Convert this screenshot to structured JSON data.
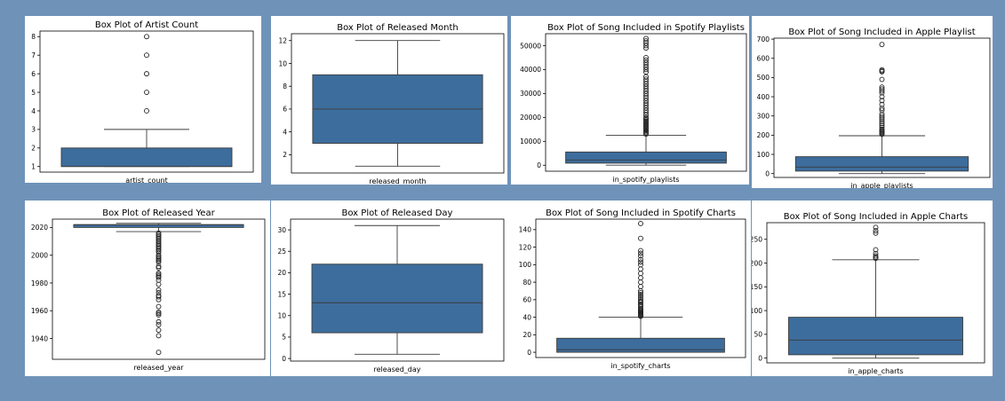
{
  "colors": {
    "box_fill": "#3d6d9c",
    "line": "#3c3c3c",
    "page_bg": "#6f93b8"
  },
  "chart_data": [
    {
      "type": "box",
      "title": "Box Plot of Artist Count",
      "xlabel": "artist_count",
      "ylim": [
        0.7,
        8.3
      ],
      "yticks": [
        1,
        2,
        3,
        4,
        5,
        6,
        7,
        8
      ],
      "stats": {
        "whisker_low": 1,
        "q1": 1,
        "median": 1,
        "q3": 2,
        "whisker_high": 3
      },
      "outliers": [
        4,
        5,
        6,
        7,
        8
      ]
    },
    {
      "type": "box",
      "title": "Box Plot of Released Month",
      "xlabel": "released_month",
      "ylim": [
        0.4,
        12.6
      ],
      "yticks": [
        2,
        4,
        6,
        8,
        10,
        12
      ],
      "stats": {
        "whisker_low": 1,
        "q1": 3,
        "median": 6,
        "q3": 9,
        "whisker_high": 12
      },
      "outliers": []
    },
    {
      "type": "box",
      "title": "Box Plot of Song Included in Spotify Playlists",
      "xlabel": "in_spotify_playlists",
      "ylim": [
        -2500,
        55000
      ],
      "yticks": [
        0,
        10000,
        20000,
        30000,
        40000,
        50000
      ],
      "stats": {
        "whisker_low": 31,
        "q1": 875,
        "median": 2224,
        "q3": 5542,
        "whisker_high": 12500
      },
      "outliers": [
        13000,
        13500,
        14000,
        14500,
        15000,
        15500,
        16000,
        16500,
        17000,
        17500,
        18000,
        18500,
        19000,
        19500,
        20000,
        21000,
        22000,
        23000,
        24000,
        25000,
        26000,
        27000,
        28000,
        29000,
        30000,
        31000,
        32000,
        33000,
        34000,
        35000,
        36000,
        37000,
        39000,
        40000,
        41000,
        42000,
        43000,
        44000,
        45000,
        49000,
        50000,
        51000,
        52000,
        53000
      ]
    },
    {
      "type": "box",
      "title": "Box Plot of Song Included in Apple Playlist",
      "xlabel": "in_apple_playlists",
      "ylim": [
        -20,
        705
      ],
      "yticks": [
        0,
        100,
        200,
        300,
        400,
        500,
        600,
        700
      ],
      "stats": {
        "whisker_low": 0,
        "q1": 13,
        "median": 34,
        "q3": 88,
        "whisker_high": 197
      },
      "outliers": [
        205,
        210,
        215,
        220,
        225,
        230,
        240,
        250,
        260,
        270,
        280,
        290,
        300,
        310,
        330,
        340,
        360,
        380,
        400,
        420,
        430,
        440,
        450,
        490,
        530,
        535,
        540,
        672
      ]
    },
    {
      "type": "box",
      "title": "Box Plot of Released Year",
      "xlabel": "released_year",
      "ylim": [
        1925,
        2026
      ],
      "yticks": [
        1940,
        1960,
        1980,
        2000,
        2020
      ],
      "stats": {
        "whisker_low": 2017,
        "q1": 2020,
        "median": 2022,
        "q3": 2022,
        "whisker_high": 2023
      },
      "outliers": [
        2016,
        2015,
        2014,
        2013,
        2012,
        2011,
        2010,
        2009,
        2008,
        2007,
        2006,
        2005,
        2004,
        2003,
        2002,
        2000,
        1999,
        1998,
        1997,
        1996,
        1995,
        1992,
        1991,
        1987,
        1986,
        1985,
        1984,
        1982,
        1979,
        1975,
        1973,
        1971,
        1970,
        1968,
        1963,
        1959,
        1958,
        1957,
        1952,
        1950,
        1946,
        1942,
        1930
      ]
    },
    {
      "type": "box",
      "title": "Box Plot of Released Day",
      "xlabel": "released_day",
      "ylim": [
        -0.6,
        32.5
      ],
      "yticks": [
        0,
        5,
        10,
        15,
        20,
        25,
        30
      ],
      "stats": {
        "whisker_low": 1,
        "q1": 6,
        "median": 13,
        "q3": 22,
        "whisker_high": 31
      },
      "outliers": []
    },
    {
      "type": "box",
      "title": "Box Plot of Song Included in Spotify Charts",
      "xlabel": "in_spotify_charts",
      "ylim": [
        -6,
        152
      ],
      "yticks": [
        0,
        20,
        40,
        60,
        80,
        100,
        120,
        140
      ],
      "stats": {
        "whisker_low": 0,
        "q1": 0,
        "median": 3,
        "q3": 16,
        "whisker_high": 40
      },
      "outliers": [
        41,
        42,
        43,
        44,
        45,
        46,
        47,
        48,
        49,
        50,
        52,
        54,
        55,
        57,
        58,
        60,
        62,
        64,
        66,
        68,
        70,
        75,
        80,
        85,
        90,
        95,
        100,
        103,
        106,
        110,
        113,
        116,
        130,
        147
      ]
    },
    {
      "type": "box",
      "title": "Box Plot of Song Included in Apple Charts",
      "xlabel": "in_apple_charts",
      "ylim": [
        -10,
        285
      ],
      "yticks": [
        0,
        50,
        100,
        150,
        200,
        250
      ],
      "stats": {
        "whisker_low": 0,
        "q1": 7,
        "median": 38,
        "q3": 86,
        "whisker_high": 207
      },
      "outliers": [
        210,
        212,
        215,
        220,
        228,
        263,
        268,
        275
      ]
    }
  ]
}
